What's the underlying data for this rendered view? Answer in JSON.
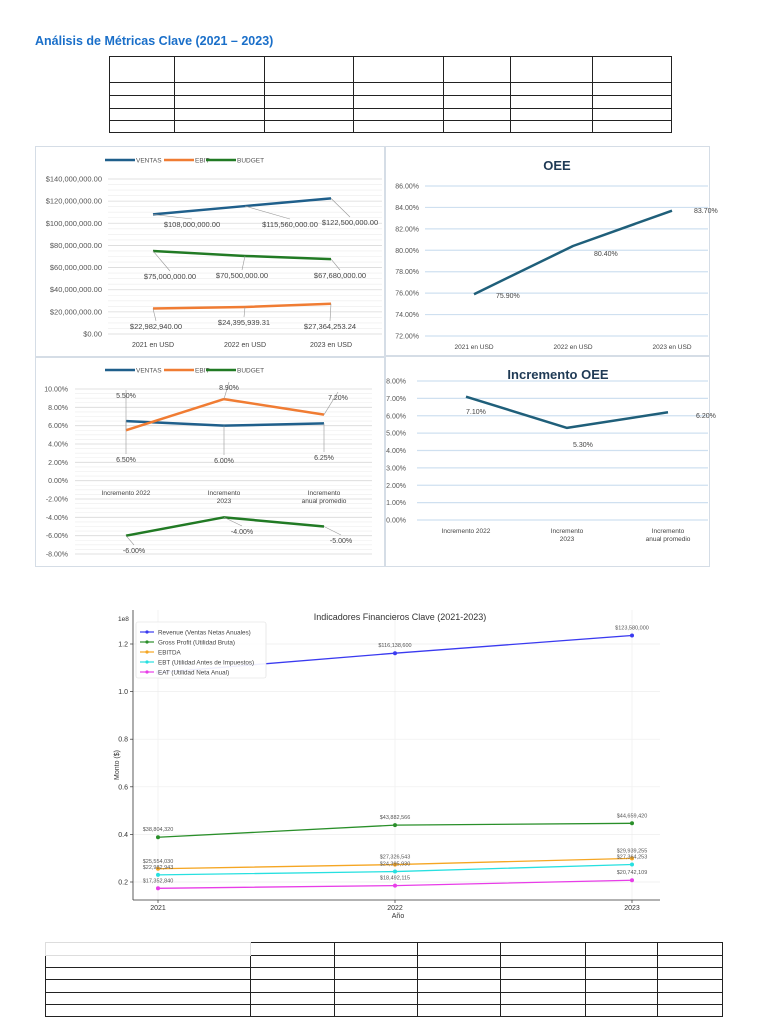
{
  "document": {
    "title": "Análisis de Métricas Clave (2021 – 2023)"
  },
  "chart_data": [
    {
      "type": "line",
      "title": "",
      "categories": [
        "2021 en USD",
        "2022 en USD",
        "2023 en USD"
      ],
      "ylim": [
        0,
        140000000
      ],
      "yticks": [
        "$0.00",
        "$20,000,000.00",
        "$40,000,000.00",
        "$60,000,000.00",
        "$80,000,000.00",
        "$100,000,000.00",
        "$120,000,000.00",
        "$140,000,000.00"
      ],
      "grid": true,
      "legend": "top",
      "series": [
        {
          "name": "VENTAS",
          "color": "#1f5f8b",
          "values": [
            108000000,
            115560000,
            122500000
          ],
          "labels": [
            "$108,000,000.00",
            "$115,560,000.00",
            "$122,500,000.00"
          ]
        },
        {
          "name": "EBIT",
          "color": "#f07c33",
          "values": [
            22982940,
            24395939.31,
            27364253.24
          ],
          "labels": [
            "$22,982,940.00",
            "$24,395,939.31",
            "$27,364,253.24"
          ]
        },
        {
          "name": "BUDGET",
          "color": "#217a24",
          "values": [
            75000000,
            70500000,
            67680000
          ],
          "labels": [
            "$75,000,000.00",
            "$70,500,000.00",
            "$67,680,000.00"
          ]
        }
      ]
    },
    {
      "type": "line",
      "title": "OEE",
      "categories": [
        "2021 en USD",
        "2022 en USD",
        "2023 en USD"
      ],
      "ylim": [
        72,
        86
      ],
      "yticks": [
        "72.00%",
        "74.00%",
        "76.00%",
        "78.00%",
        "80.00%",
        "82.00%",
        "84.00%",
        "86.00%"
      ],
      "grid": true,
      "series": [
        {
          "color": "#1f5f7a",
          "values": [
            75.9,
            80.4,
            83.7
          ],
          "labels": [
            "75.90%",
            "80.40%",
            "83.70%"
          ]
        }
      ]
    },
    {
      "type": "line",
      "title": "",
      "categories": [
        "Incremento 2022",
        "Incremento\n2023",
        "Incremento\nanual promedio"
      ],
      "ylim": [
        -8,
        10
      ],
      "yticks": [
        "-8.00%",
        "-6.00%",
        "-4.00%",
        "-2.00%",
        "0.00%",
        "2.00%",
        "4.00%",
        "6.00%",
        "8.00%",
        "10.00%"
      ],
      "grid": true,
      "legend": "top",
      "series": [
        {
          "name": "VENTAS",
          "color": "#1f5f8b",
          "values": [
            6.5,
            6.0,
            6.25
          ],
          "labels": [
            "6.50%",
            "6.00%",
            "6.25%"
          ]
        },
        {
          "name": "EBIT",
          "color": "#f07c33",
          "values": [
            5.5,
            8.9,
            7.2
          ],
          "labels": [
            "5.50%",
            "8.90%",
            "7.20%"
          ]
        },
        {
          "name": "BUDGET",
          "color": "#217a24",
          "values": [
            -6.0,
            -4.0,
            -5.0
          ],
          "labels": [
            "-6.00%",
            "-4.00%",
            "-5.00%"
          ]
        }
      ]
    },
    {
      "type": "line",
      "title": "Incremento OEE",
      "categories": [
        "Incremento 2022",
        "Incremento\n2023",
        "Incremento\nanual promedio"
      ],
      "ylim": [
        0,
        8
      ],
      "yticks": [
        "0.00%",
        "1.00%",
        "2.00%",
        "3.00%",
        "4.00%",
        "5.00%",
        "6.00%",
        "7.00%",
        "8.00%"
      ],
      "grid": true,
      "series": [
        {
          "color": "#1f5f7a",
          "values": [
            7.1,
            5.3,
            6.2
          ],
          "labels": [
            "7.10%",
            "5.30%",
            "6.20%"
          ]
        }
      ]
    },
    {
      "type": "line",
      "title": "Indicadores Financieros Clave (2021-2023)",
      "xlabel": "Año",
      "ylabel": "Monto ($)",
      "y_offset_label": "1e8",
      "categories": [
        "2021",
        "2022",
        "2023"
      ],
      "yticks": [
        "0.2",
        "0.4",
        "0.6",
        "0.8",
        "1.0",
        "1.2"
      ],
      "grid": true,
      "legend": "top-left",
      "series": [
        {
          "name": "Revenue (Ventas Netas Anuales)",
          "color": "#3a3af0",
          "values": [
            108000000,
            116138600,
            123580000
          ],
          "labels": [
            null,
            "$116,138,600",
            "$123,580,000"
          ]
        },
        {
          "name": "Gross Profit (Utilidad Bruta)",
          "color": "#2a8f2a",
          "values": [
            38804320,
            43882566,
            44659420
          ],
          "labels": [
            "$38,804,320",
            "$43,882,566",
            "$44,659,420"
          ]
        },
        {
          "name": "EBITDA",
          "color": "#f5a623",
          "values": [
            25554030,
            27326543,
            29939255
          ],
          "labels": [
            "$25,554,030",
            "$27,326,543",
            "$29,939,255"
          ]
        },
        {
          "name": "EBT (Utilidad Antes de Impuestos)",
          "color": "#27e0e0",
          "values": [
            22982943,
            24395930,
            27364253
          ],
          "labels": [
            "$22,982,943",
            "$24,395,930",
            "$27,364,253"
          ]
        },
        {
          "name": "EAT (Utilidad Neta Anual)",
          "color": "#e83de8",
          "values": [
            17352840,
            18492115,
            20742109
          ],
          "labels": [
            "$17,352,840",
            "$18,492,115",
            "$20,742,109"
          ]
        }
      ]
    }
  ]
}
